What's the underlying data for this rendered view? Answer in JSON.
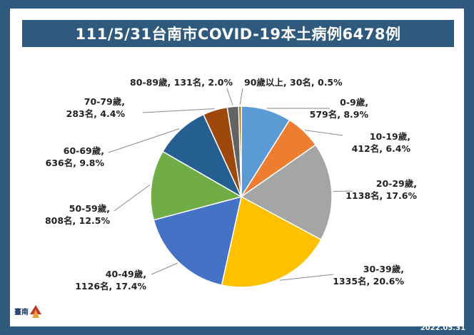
{
  "title": "111/5/31台南市COVID-19本土病例6478例",
  "footer_date": "2022.05.31",
  "logo_text": "臺南",
  "chart_data": {
    "type": "pie",
    "title": "111/5/31台南市COVID-19本土病例6478例",
    "total": 6478,
    "start_angle_deg": 90,
    "direction": "clockwise",
    "slices": [
      {
        "category": "0-9歲",
        "value": 579,
        "percent": 8.9,
        "color": "#5b9bd5",
        "label_line1": "0-9歲,",
        "label_line2": "579名, 8.9%"
      },
      {
        "category": "10-19歲",
        "value": 412,
        "percent": 6.4,
        "color": "#ed7d31",
        "label_line1": "10-19歲,",
        "label_line2": "412名, 6.4%"
      },
      {
        "category": "20-29歲",
        "value": 1138,
        "percent": 17.6,
        "color": "#a5a5a5",
        "label_line1": "20-29歲,",
        "label_line2": "1138名, 17.6%"
      },
      {
        "category": "30-39歲",
        "value": 1335,
        "percent": 20.6,
        "color": "#ffc000",
        "label_line1": "30-39歲,",
        "label_line2": "1335名, 20.6%"
      },
      {
        "category": "40-49歲",
        "value": 1126,
        "percent": 17.4,
        "color": "#4472c4",
        "label_line1": "40-49歲,",
        "label_line2": "1126名, 17.4%"
      },
      {
        "category": "50-59歲",
        "value": 808,
        "percent": 12.5,
        "color": "#70ad47",
        "label_line1": "50-59歲,",
        "label_line2": "808名, 12.5%"
      },
      {
        "category": "60-69歲",
        "value": 636,
        "percent": 9.8,
        "color": "#255e91",
        "label_line1": "60-69歲,",
        "label_line2": "636名, 9.8%"
      },
      {
        "category": "70-79歲",
        "value": 283,
        "percent": 4.4,
        "color": "#9e480e",
        "label_line1": "70-79歲,",
        "label_line2": "283名, 4.4%"
      },
      {
        "category": "80-89歲",
        "value": 131,
        "percent": 2.0,
        "color": "#636363",
        "label_line1": "80-89歲, 131名, 2.0%",
        "label_line2": ""
      },
      {
        "category": "90歲以上",
        "value": 30,
        "percent": 0.5,
        "color": "#997300",
        "label_line1": "90歲以上, 30名, 0.5%",
        "label_line2": ""
      }
    ]
  }
}
